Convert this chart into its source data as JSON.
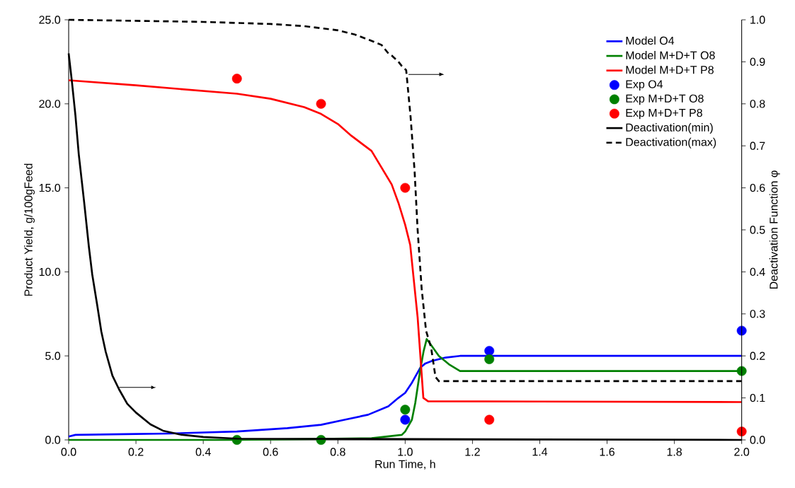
{
  "chart_data": {
    "type": "line",
    "xlabel": "Run Time, h",
    "ylabel": "Product Yield, g/100gFeed",
    "y2label": "Deactivation Function φ",
    "xlim": [
      0,
      2
    ],
    "ylim": [
      0,
      25
    ],
    "y2lim": [
      0,
      1
    ],
    "xticks": [
      {
        "value": 0,
        "label": "0.0"
      },
      {
        "value": 0.2,
        "label": "0.2"
      },
      {
        "value": 0.4,
        "label": "0.4"
      },
      {
        "value": 0.6,
        "label": "0.6"
      },
      {
        "value": 0.8,
        "label": "0.8"
      },
      {
        "value": 1,
        "label": "1.0"
      },
      {
        "value": 1.2,
        "label": "1.2"
      },
      {
        "value": 1.4,
        "label": "1.4"
      },
      {
        "value": 1.6,
        "label": "1.6"
      },
      {
        "value": 1.8,
        "label": "1.8"
      },
      {
        "value": 2,
        "label": "2.0"
      }
    ],
    "yticks": [
      {
        "value": 0,
        "label": "0.0"
      },
      {
        "value": 5,
        "label": "5.0"
      },
      {
        "value": 10,
        "label": "10.0"
      },
      {
        "value": 15,
        "label": "15.0"
      },
      {
        "value": 20,
        "label": "20.0"
      },
      {
        "value": 25,
        "label": "25.0"
      }
    ],
    "y2ticks": [
      {
        "value": 0,
        "label": "0.0"
      },
      {
        "value": 0.1,
        "label": "0.1"
      },
      {
        "value": 0.2,
        "label": "0.2"
      },
      {
        "value": 0.3,
        "label": "0.3"
      },
      {
        "value": 0.4,
        "label": "0.4"
      },
      {
        "value": 0.5,
        "label": "0.5"
      },
      {
        "value": 0.6,
        "label": "0.6"
      },
      {
        "value": 0.7,
        "label": "0.7"
      },
      {
        "value": 0.8,
        "label": "0.8"
      },
      {
        "value": 0.9,
        "label": "0.9"
      },
      {
        "value": 1,
        "label": "1.0"
      }
    ],
    "legend": "top right",
    "grid": false,
    "series": [
      {
        "name": "Model O4",
        "color": "#0000ff",
        "x": [
          0,
          0.02,
          0.2,
          0.3,
          0.5,
          0.65,
          0.75,
          0.82,
          0.89,
          0.95,
          0.98,
          1.0,
          1.02,
          1.045,
          1.06,
          1.08,
          1.12,
          1.163,
          2.0
        ],
        "values": [
          0.2,
          0.3,
          0.35,
          0.38,
          0.5,
          0.7,
          0.9,
          1.2,
          1.5,
          2.0,
          2.5,
          2.8,
          3.4,
          4.3,
          4.55,
          4.7,
          4.9,
          5.0,
          5.0
        ]
      },
      {
        "name": "Model M+D+T O8",
        "color": "#008000",
        "x": [
          0,
          0.5,
          0.9,
          0.99,
          1.0,
          1.02,
          1.03,
          1.045,
          1.055,
          1.064,
          1.075,
          1.1,
          1.13,
          1.163,
          2.0
        ],
        "values": [
          0,
          0,
          0.1,
          0.3,
          0.5,
          1.2,
          2.2,
          4.2,
          5.3,
          6.0,
          5.7,
          5.0,
          4.5,
          4.1,
          4.1
        ]
      },
      {
        "name": "Model M+D+T P8",
        "color": "#ff0000",
        "x": [
          0,
          0.2,
          0.5,
          0.6,
          0.7,
          0.75,
          0.8,
          0.84,
          0.9,
          0.93,
          0.96,
          0.98,
          1.0,
          1.015,
          1.037,
          1.054,
          1.068,
          2.0
        ],
        "values": [
          21.4,
          21.1,
          20.6,
          20.3,
          19.8,
          19.4,
          18.8,
          18.1,
          17.2,
          16.2,
          15.2,
          14.1,
          12.8,
          11.6,
          7.3,
          2.5,
          2.3,
          2.25
        ]
      },
      {
        "name": "Exp O4",
        "type": "scatter",
        "color": "#0000ff",
        "x": [
          1.0,
          1.25,
          2.0
        ],
        "values": [
          1.2,
          5.3,
          6.5
        ]
      },
      {
        "name": "Exp M+D+T O8",
        "type": "scatter",
        "color": "#008000",
        "x": [
          0.5,
          0.75,
          1.0,
          1.25,
          2.0
        ],
        "values": [
          0,
          0,
          1.8,
          4.8,
          4.1
        ]
      },
      {
        "name": "Exp M+D+T P8",
        "type": "scatter",
        "color": "#ff0000",
        "x": [
          0.5,
          0.75,
          1.0,
          1.25,
          2.0
        ],
        "values": [
          21.5,
          20.0,
          15.0,
          1.2,
          0.5
        ]
      },
      {
        "name": "Deactivation(min)",
        "axis": "y2",
        "color": "#000000",
        "x": [
          0,
          0.01,
          0.02,
          0.03,
          0.046,
          0.06,
          0.07,
          0.085,
          0.097,
          0.11,
          0.13,
          0.15,
          0.174,
          0.2,
          0.243,
          0.28,
          0.33,
          0.4,
          0.5,
          2.0
        ],
        "values": [
          0.92,
          0.85,
          0.773,
          0.68,
          0.566,
          0.46,
          0.394,
          0.32,
          0.258,
          0.21,
          0.153,
          0.12,
          0.086,
          0.065,
          0.037,
          0.022,
          0.013,
          0.007,
          0.003,
          0
        ]
      },
      {
        "name": "Deactivation(max)",
        "axis": "y2",
        "line_style": "dashed",
        "color": "#000000",
        "x": [
          0,
          0.4,
          0.6,
          0.7,
          0.8,
          0.85,
          0.9,
          0.93,
          0.95,
          0.96,
          0.98,
          0.99,
          1.003,
          1.016,
          1.028,
          1.037,
          1.049,
          1.062,
          1.077,
          1.09,
          1.1,
          2.0
        ],
        "values": [
          1.0,
          0.995,
          0.99,
          0.985,
          0.975,
          0.965,
          0.95,
          0.94,
          0.92,
          0.915,
          0.9,
          0.89,
          0.88,
          0.77,
          0.64,
          0.5,
          0.36,
          0.26,
          0.22,
          0.15,
          0.14,
          0.14
        ]
      }
    ]
  }
}
